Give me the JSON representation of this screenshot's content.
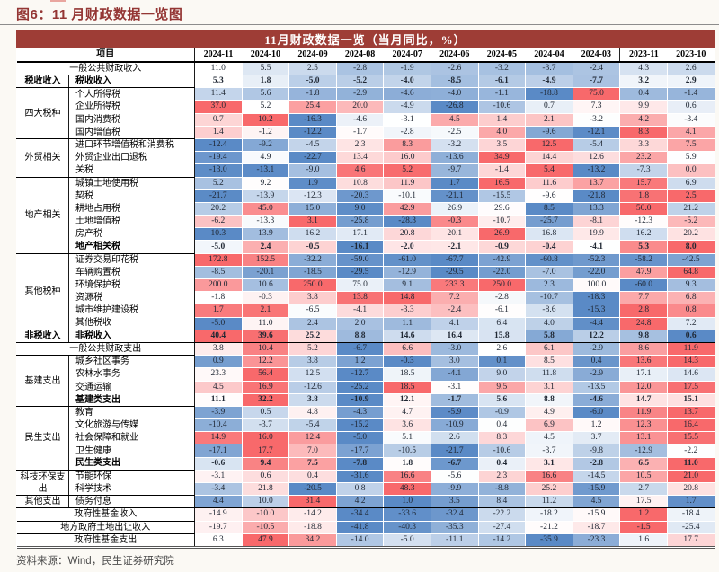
{
  "figure": {
    "title": "图6：11 月财政数据一览图",
    "source": "资料来源：Wind，民生证券研究院"
  },
  "colors": {
    "band_background": "#9E3D36",
    "title_color": "#943634",
    "heat_red": "#F8696B",
    "heat_blue": "#5A8AC6",
    "heat_neutral": "#FFFFFF",
    "grid_line": "#1A1A1A",
    "value_text": "#1F2733"
  },
  "chart_data": {
    "type": "heatmap",
    "title": "11月财政数据一览（当月同比，%）",
    "corner_header": "项目",
    "columns": [
      "2024-11",
      "2024-10",
      "2024-09",
      "2024-08",
      "2024-07",
      "2024-06",
      "2024-05",
      "2024-04",
      "2024-03",
      "2023-11",
      "2023-10"
    ],
    "legend": "per-row blue-white-red scale (row min = blue, row max = red)",
    "rows": [
      {
        "label": "一般公共财政收入",
        "label_span": true,
        "scale": "bw",
        "sep": "label",
        "values": [
          11.0,
          5.5,
          2.5,
          -2.8,
          -1.9,
          -2.6,
          -3.2,
          -3.7,
          -2.4,
          4.3,
          2.6
        ]
      },
      {
        "group": "税收收入",
        "group_span": 1,
        "label": "税收收入",
        "bold": true,
        "scale": "bw",
        "sep": "label",
        "values": [
          5.3,
          1.8,
          -5.0,
          -5.2,
          -4.0,
          -8.5,
          -6.1,
          -4.9,
          -7.7,
          3.2,
          2.9
        ]
      },
      {
        "group": "四大税种",
        "group_span": 4,
        "label": "个人所得税",
        "values": [
          11.4,
          5.6,
          -1.8,
          -2.9,
          -4.6,
          -4.0,
          -1.1,
          -18.8,
          75.0,
          0.4,
          -1.4
        ]
      },
      {
        "label": "企业所得税",
        "values": [
          37.0,
          5.2,
          25.4,
          20.0,
          -4.9,
          -26.8,
          -10.6,
          0.7,
          7.3,
          9.9,
          0.6
        ]
      },
      {
        "label": "国内消费税",
        "values": [
          0.7,
          10.2,
          -16.3,
          -4.6,
          -3.1,
          4.5,
          1.4,
          2.1,
          -3.2,
          4.2,
          -3.4
        ]
      },
      {
        "label": "国内增值税",
        "sep": "label",
        "values": [
          1.4,
          -1.2,
          -12.2,
          -1.7,
          -2.8,
          -2.5,
          4.0,
          -9.6,
          -12.1,
          8.3,
          4.1
        ]
      },
      {
        "group": "外贸相关",
        "group_span": 3,
        "label": "进口环节增值税和消费税",
        "values": [
          -12.4,
          -9.2,
          -4.5,
          2.3,
          8.3,
          -3.2,
          3.5,
          12.5,
          -5.4,
          3.3,
          7.5
        ]
      },
      {
        "label": "外贸企业出口退税",
        "values": [
          -19.4,
          4.9,
          -22.7,
          13.4,
          16.0,
          -13.6,
          34.9,
          14.4,
          12.6,
          23.2,
          5.9
        ]
      },
      {
        "label": "关税",
        "sep": "label",
        "values": [
          -13.0,
          -13.1,
          -9.0,
          4.6,
          5.2,
          -9.7,
          -1.4,
          5.4,
          -13.2,
          -7.3,
          0.0
        ]
      },
      {
        "group": "地产相关",
        "group_span": 6,
        "label": "城镇土地使用税",
        "values": [
          5.2,
          9.2,
          1.9,
          10.8,
          11.9,
          1.7,
          16.5,
          11.6,
          13.7,
          15.7,
          6.9
        ]
      },
      {
        "label": "契税",
        "values": [
          -21.7,
          -13.9,
          -12.3,
          -20.3,
          -10.1,
          -21.1,
          -15.5,
          -9.6,
          -21.8,
          1.8,
          2.5
        ]
      },
      {
        "label": "耕地占用税",
        "values": [
          20.2,
          45.0,
          15.0,
          9.0,
          42.9,
          26.9,
          29.6,
          8.5,
          13.3,
          50.0,
          21.2
        ]
      },
      {
        "label": "土地增值税",
        "values": [
          -6.2,
          -13.3,
          3.1,
          -25.8,
          -28.3,
          -0.3,
          -10.7,
          -25.7,
          -8.1,
          -12.3,
          -5.2
        ]
      },
      {
        "label": "房产税",
        "values": [
          10.3,
          13.9,
          16.2,
          17.1,
          20.8,
          20.1,
          26.9,
          16.8,
          19.9,
          16.2,
          20.2
        ]
      },
      {
        "label": "地产相关税",
        "bold": true,
        "sep": "label",
        "values": [
          -5.0,
          2.4,
          -0.5,
          -16.1,
          -2.0,
          -2.1,
          -0.9,
          -0.4,
          -4.1,
          5.3,
          8.0
        ]
      },
      {
        "group": "其他税种",
        "group_span": 6,
        "label": "证券交易印花税",
        "values": [
          172.8,
          152.5,
          -32.2,
          -59.0,
          -61.0,
          -67.7,
          -42.9,
          -60.8,
          -52.3,
          -58.2,
          -42.5
        ]
      },
      {
        "label": "车辆购置税",
        "values": [
          -8.5,
          -20.1,
          -18.5,
          -29.5,
          -12.9,
          -29.5,
          -22.0,
          -7.0,
          -22.0,
          47.9,
          64.8
        ]
      },
      {
        "label": "环境保护税",
        "values": [
          200.0,
          10.6,
          250.0,
          75.0,
          9.1,
          233.3,
          250.0,
          2.3,
          100.0,
          -60.0,
          9.3
        ]
      },
      {
        "label": "资源税",
        "values": [
          -1.8,
          -0.3,
          3.8,
          13.8,
          14.8,
          7.2,
          -2.8,
          -10.7,
          -18.3,
          7.7,
          6.8
        ]
      },
      {
        "label": "城市维护建设税",
        "values": [
          1.7,
          2.1,
          -6.5,
          -4.1,
          -3.3,
          -2.4,
          -6.1,
          -8.6,
          -15.3,
          2.8,
          0.8
        ]
      },
      {
        "label": "其他税收",
        "sep": "label",
        "values": [
          -5.0,
          11.0,
          2.4,
          2.0,
          1.1,
          4.1,
          6.4,
          4.0,
          -4.4,
          24.8,
          7.2
        ]
      },
      {
        "group": "非税收入",
        "group_span": 1,
        "label": "非税收入",
        "bold": true,
        "sep": "full",
        "values": [
          40.4,
          39.6,
          25.2,
          8.8,
          14.6,
          16.4,
          15.8,
          5.8,
          12.2,
          9.8,
          0.6
        ]
      },
      {
        "label": "一般公共财政支出",
        "label_span": true,
        "sep": "label",
        "values": [
          3.8,
          10.4,
          5.2,
          -6.7,
          6.6,
          -3.0,
          2.6,
          6.1,
          -2.9,
          8.6,
          11.9
        ]
      },
      {
        "group": "基建支出",
        "group_span": 4,
        "label": "城乡社区事务",
        "values": [
          0.9,
          12.2,
          3.8,
          1.2,
          -0.3,
          3.0,
          0.1,
          8.5,
          0.4,
          13.6,
          14.3
        ]
      },
      {
        "label": "农林水事务",
        "values": [
          23.3,
          56.4,
          12.5,
          -12.7,
          18.5,
          -4.1,
          9.0,
          11.8,
          -2.9,
          17.1,
          14.6
        ]
      },
      {
        "label": "交通运输",
        "values": [
          4.5,
          16.9,
          -12.6,
          -25.2,
          18.5,
          -3.1,
          9.5,
          3.1,
          -13.5,
          12.0,
          17.5
        ]
      },
      {
        "label": "基建类支出",
        "bold": true,
        "sep": "label",
        "values": [
          11.1,
          32.2,
          3.8,
          -10.9,
          12.1,
          -1.7,
          5.6,
          8.8,
          -4.6,
          14.7,
          15.1
        ]
      },
      {
        "group": "民生支出",
        "group_span": 5,
        "label": "教育",
        "values": [
          -3.9,
          0.5,
          4.8,
          -4.3,
          4.7,
          -5.9,
          -0.9,
          4.9,
          -6.0,
          11.9,
          13.7
        ]
      },
      {
        "label": "文化旅游与传媒",
        "values": [
          -10.4,
          -3.7,
          -5.4,
          -15.2,
          3.6,
          -10.9,
          0.4,
          6.9,
          1.2,
          12.3,
          16.4
        ]
      },
      {
        "label": "社会保障和就业",
        "values": [
          14.9,
          16.0,
          12.4,
          -5.0,
          5.1,
          2.6,
          8.3,
          4.5,
          3.7,
          13.1,
          15.5
        ]
      },
      {
        "label": "卫生健康",
        "values": [
          -17.1,
          17.7,
          7.0,
          -17.7,
          -10.5,
          -21.7,
          -10.6,
          -3.7,
          -9.8,
          -12.9,
          -2.2
        ]
      },
      {
        "label": "民生类支出",
        "bold": true,
        "sep": "label",
        "values": [
          -0.6,
          9.4,
          7.5,
          -7.8,
          1.8,
          -6.7,
          0.4,
          3.1,
          -2.8,
          6.5,
          11.0
        ]
      },
      {
        "group": "科技环保支出",
        "group_span": 2,
        "label": "节能环保",
        "values": [
          -3.1,
          0.6,
          0.4,
          -31.6,
          16.6,
          -5.6,
          2.3,
          16.6,
          -14.5,
          10.5,
          21.0
        ]
      },
      {
        "label": "科学技术",
        "sep": "label",
        "values": [
          -3.4,
          21.8,
          -20.5,
          0.8,
          48.3,
          -9.9,
          -8.8,
          25.2,
          -15.9,
          2.7,
          20.8
        ]
      },
      {
        "group": "其他支出",
        "group_span": 1,
        "label": "债务付息",
        "sep": "full",
        "values": [
          4.4,
          10.0,
          31.4,
          4.2,
          1.0,
          3.5,
          8.4,
          11.2,
          4.5,
          17.5,
          1.7
        ]
      },
      {
        "label": "政府性基金收入",
        "label_span": true,
        "sep": "label",
        "values": [
          -14.9,
          -10.0,
          -14.2,
          -34.4,
          -33.6,
          -32.4,
          -22.2,
          -18.2,
          -15.9,
          1.2,
          -18.4
        ]
      },
      {
        "label": "地方政府土地出让收入",
        "label_span": true,
        "sep": "label",
        "values": [
          -19.7,
          -10.5,
          -18.8,
          -41.8,
          -40.3,
          -35.3,
          -27.4,
          -21.2,
          -18.7,
          -1.5,
          -25.4
        ]
      },
      {
        "label": "政府性基金支出",
        "label_span": true,
        "values": [
          6.3,
          47.9,
          34.2,
          -14.0,
          -5.0,
          -11.1,
          -14.2,
          -35.9,
          -23.3,
          1.6,
          17.7
        ]
      }
    ]
  }
}
